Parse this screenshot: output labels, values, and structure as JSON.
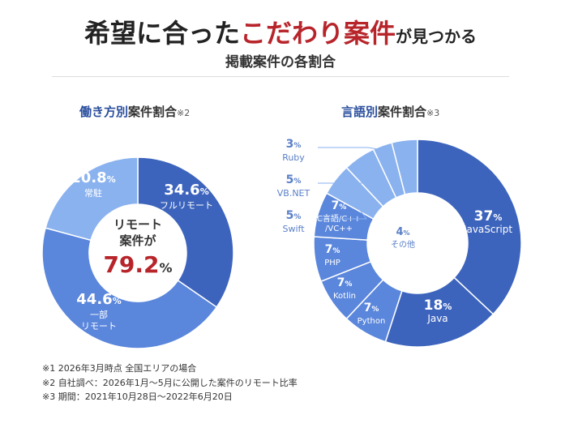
{
  "header": {
    "headline_part1": "希望に合った",
    "headline_part2": "こだわり案件",
    "headline_part3": "が見つかる",
    "subtitle": "掲載案件の各割合"
  },
  "work_style": {
    "title_main": "働き方別",
    "title_rest": "案件割合",
    "title_note": "※2",
    "center_line1": "リモート",
    "center_line2": "案件が",
    "center_value": "79.2",
    "center_unit": "%"
  },
  "language": {
    "title_main": "言語別",
    "title_rest": "案件割合",
    "title_note": "※3"
  },
  "footnotes": [
    "※1 2026年3月時点 全国エリアの場合",
    "※2 自社調べ：2026年1月〜5月に公開した案件のリモート比率",
    "※3 期間：2021年10月28日〜2022年6月20日"
  ],
  "colors": {
    "accent_red": "#b7252b",
    "title_blue": "#2b4f9e",
    "dark_blue": "#3d64bd",
    "mid_blue": "#5a86dc",
    "light_blue": "#8ab2ef",
    "callout_blue": "#5b80c8"
  },
  "chart_data": [
    {
      "type": "pie",
      "title": "働き方別案件割合",
      "categories": [
        "フルリモート",
        "一部リモート",
        "常駐"
      ],
      "values": [
        34.6,
        44.6,
        20.8
      ],
      "unit": "%"
    },
    {
      "type": "pie",
      "title": "言語別案件割合",
      "categories": [
        "JavaScript",
        "Java",
        "Python",
        "Kotlin",
        "PHP",
        "C言語/C++/VC++",
        "Swift",
        "VB.NET",
        "Ruby",
        "その他"
      ],
      "values": [
        37,
        18,
        7,
        7,
        7,
        7,
        5,
        5,
        3,
        4
      ],
      "unit": "%"
    }
  ]
}
